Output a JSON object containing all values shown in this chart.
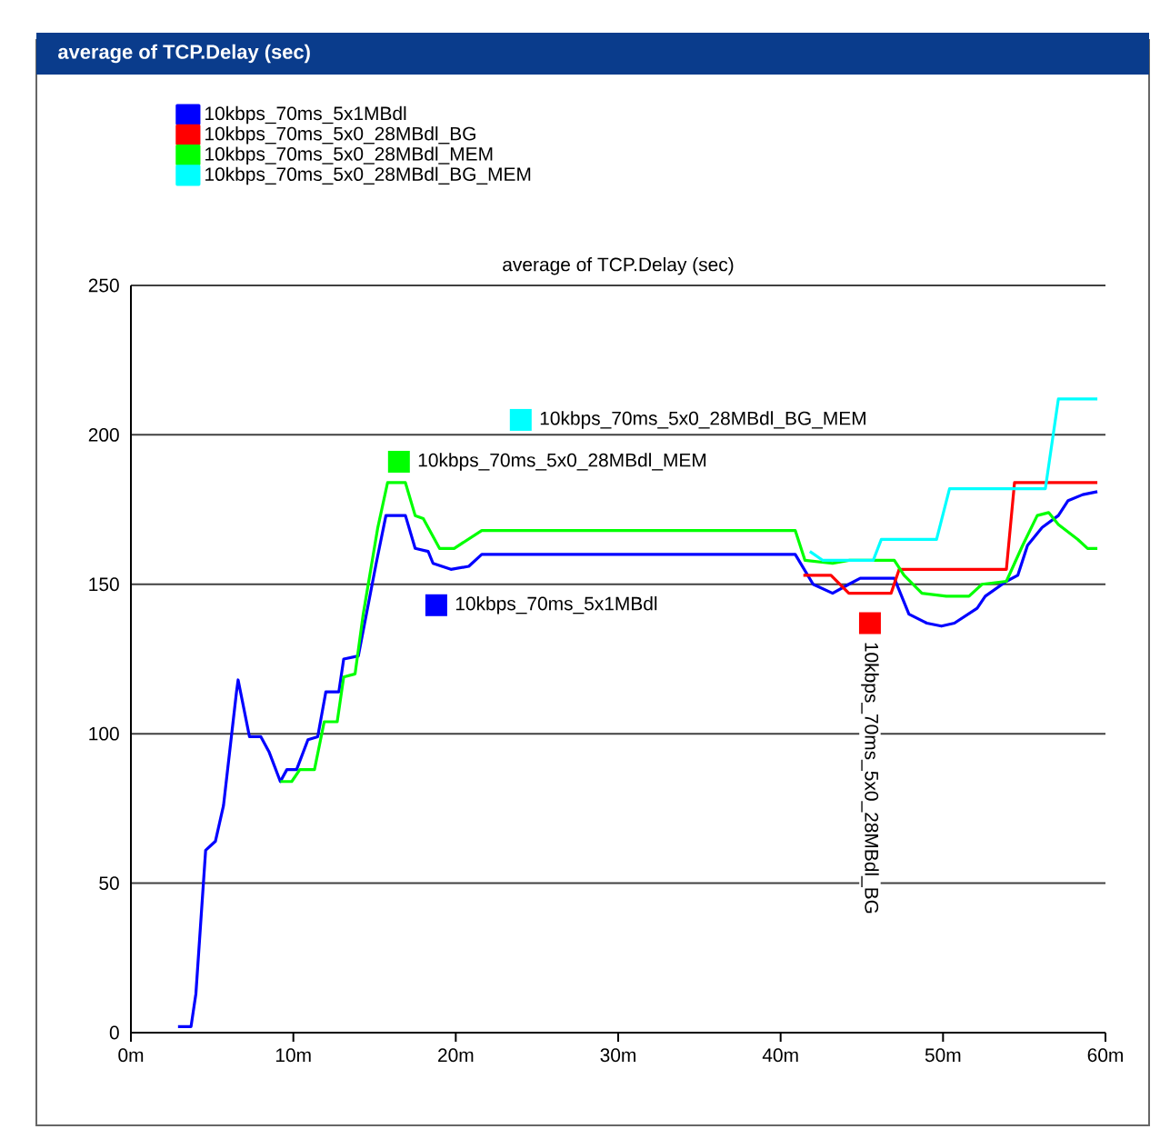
{
  "chart_data": {
    "type": "line",
    "title": "average of TCP.Delay (sec)",
    "subtitle": "average of TCP.Delay (sec)",
    "xlim": [
      0,
      60
    ],
    "ylim": [
      0,
      250
    ],
    "xticks": [
      {
        "value": 0,
        "label": "0m"
      },
      {
        "value": 10,
        "label": "10m"
      },
      {
        "value": 20,
        "label": "20m"
      },
      {
        "value": 30,
        "label": "30m"
      },
      {
        "value": 40,
        "label": "40m"
      },
      {
        "value": 50,
        "label": "50m"
      },
      {
        "value": 60,
        "label": "60m"
      }
    ],
    "yticks": [
      0,
      50,
      100,
      150,
      200,
      250
    ],
    "grid": "y",
    "legend": "top left",
    "series": [
      {
        "name": "10kbps_70ms_5x1MBdl",
        "color": "#0000ff",
        "x": [
          2.9,
          3.7,
          4.0,
          4.6,
          5.2,
          5.7,
          6.5,
          6.6,
          7.3,
          8.0,
          8.5,
          9.2,
          9.6,
          10.2,
          10.9,
          11.5,
          12.0,
          12.8,
          13.1,
          14.0,
          15.1,
          15.7,
          16.9,
          17.5,
          18.3,
          18.6,
          19.7,
          20.8,
          21.6,
          40.9,
          42.0,
          43.2,
          44.2,
          44.9,
          47.0,
          47.9,
          49.0,
          49.9,
          50.7,
          52.1,
          52.6,
          53.9,
          54.6,
          55.2,
          56.1,
          57.1,
          57.7,
          58.6,
          59.5
        ],
        "values": [
          2,
          2,
          13,
          61,
          64,
          76,
          114,
          118,
          99,
          99,
          94,
          84,
          88,
          88,
          98,
          99,
          114,
          114,
          125,
          126,
          157,
          173,
          173,
          162,
          161,
          157,
          155,
          156,
          160,
          160,
          150,
          147,
          150,
          152,
          152,
          140,
          137,
          136,
          137,
          142,
          146,
          151,
          153,
          163,
          169,
          173,
          178,
          180,
          181
        ]
      },
      {
        "name": "10kbps_70ms_5x0_28MBdl_BG",
        "color": "#ff0000",
        "x": [
          41.4,
          43.1,
          44.2,
          46.8,
          47.3,
          53.9,
          54.4,
          59.5
        ],
        "values": [
          153,
          153,
          147,
          147,
          155,
          155,
          184,
          184
        ]
      },
      {
        "name": "10kbps_70ms_5x0_28MBdl_MEM",
        "color": "#00ff00",
        "x": [
          9.2,
          9.9,
          10.4,
          11.3,
          11.9,
          12.7,
          13.1,
          13.8,
          14.3,
          15.2,
          15.8,
          16.9,
          17.5,
          18.0,
          19.0,
          19.9,
          21.6,
          40.9,
          41.5,
          43.2,
          44.2,
          47.0,
          47.6,
          48.7,
          50.2,
          51.6,
          52.4,
          53.9,
          54.9,
          55.8,
          56.5,
          57.1,
          58.3,
          58.9,
          59.5
        ],
        "values": [
          84,
          84,
          88,
          88,
          104,
          104,
          119,
          120,
          140,
          169,
          184,
          184,
          173,
          172,
          162,
          162,
          168,
          168,
          158,
          157,
          158,
          158,
          153,
          147,
          146,
          146,
          150,
          151,
          163,
          173,
          174,
          170,
          165,
          162,
          162
        ]
      },
      {
        "name": "10kbps_70ms_5x0_28MBdl_BG_MEM",
        "color": "#00ffff",
        "x": [
          41.8,
          42.6,
          45.7,
          46.2,
          49.6,
          50.4,
          56.3,
          57.1,
          59.5
        ],
        "values": [
          161,
          158,
          158,
          165,
          165,
          182,
          182,
          212,
          212
        ]
      }
    ],
    "annotations": [
      {
        "text": "10kbps_70ms_5x0_28MBdl_BG_MEM",
        "x": 24,
        "y": 205
      },
      {
        "text": "10kbps_70ms_5x0_28MBdl_MEM",
        "x": 16.5,
        "y": 191
      },
      {
        "text": "10kbps_70ms_5x1MBdl",
        "x": 18.8,
        "y": 143
      },
      {
        "text": "10kbps_70ms_5x0_28MBdl_BG",
        "x": 45.5,
        "y": 137
      }
    ]
  }
}
